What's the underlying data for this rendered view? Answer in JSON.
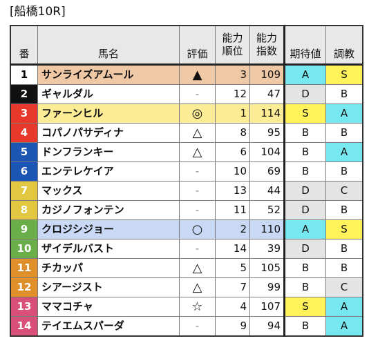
{
  "title": "[船橋10R]",
  "headers": {
    "num": "番",
    "name": "馬名",
    "eval": "評価",
    "rank_l1": "能力",
    "rank_l2": "順位",
    "idx_l1": "能力",
    "idx_l2": "指数",
    "expect": "期待値",
    "training": "調教"
  },
  "colors": {
    "highlight_orange": "#efc9a6",
    "highlight_yellow": "#fdec96",
    "highlight_blue": "#c9d8f4",
    "grade_cyan": "#78e8f0",
    "grade_yellow": "#fff25a",
    "grade_gray": "#e4e4e4",
    "header_gray": "#e8e8e8"
  },
  "rows": [
    {
      "num": "1",
      "name": "サンライズアムール",
      "eval": "▲",
      "rank": "3",
      "index": "109",
      "expect": "A",
      "training": "S",
      "num_bg": "#ffffff",
      "num_color": "#000000",
      "row_bg": "#efc9a6",
      "expect_bg": "#78e8f0",
      "training_bg": "#fff25a"
    },
    {
      "num": "2",
      "name": "ギャルダル",
      "eval": "-",
      "rank": "12",
      "index": "47",
      "expect": "D",
      "training": "B",
      "num_bg": "#111111",
      "num_color": "#ffffff",
      "row_bg": "#ffffff",
      "expect_bg": "#e4e4e4",
      "training_bg": "#ffffff"
    },
    {
      "num": "3",
      "name": "ファーンヒル",
      "eval": "◎",
      "rank": "1",
      "index": "114",
      "expect": "S",
      "training": "A",
      "num_bg": "#e8372b",
      "num_color": "#ffffff",
      "row_bg": "#fdec96",
      "expect_bg": "#fff25a",
      "training_bg": "#78e8f0"
    },
    {
      "num": "4",
      "name": "コパノパサディナ",
      "eval": "△",
      "rank": "8",
      "index": "95",
      "expect": "B",
      "training": "B",
      "num_bg": "#e8372b",
      "num_color": "#ffffff",
      "row_bg": "#ffffff",
      "expect_bg": "#ffffff",
      "training_bg": "#ffffff"
    },
    {
      "num": "5",
      "name": "ドンフランキー",
      "eval": "△",
      "rank": "6",
      "index": "104",
      "expect": "B",
      "training": "A",
      "num_bg": "#1c56b5",
      "num_color": "#ffffff",
      "row_bg": "#ffffff",
      "expect_bg": "#ffffff",
      "training_bg": "#78e8f0"
    },
    {
      "num": "6",
      "name": "エンテレケイア",
      "eval": "-",
      "rank": "10",
      "index": "69",
      "expect": "B",
      "training": "B",
      "num_bg": "#1c56b5",
      "num_color": "#ffffff",
      "row_bg": "#ffffff",
      "expect_bg": "#ffffff",
      "training_bg": "#ffffff"
    },
    {
      "num": "7",
      "name": "マックス",
      "eval": "-",
      "rank": "13",
      "index": "44",
      "expect": "D",
      "training": "C",
      "num_bg": "#e2c840",
      "num_color": "#ffffff",
      "row_bg": "#ffffff",
      "expect_bg": "#e4e4e4",
      "training_bg": "#e4e4e4"
    },
    {
      "num": "8",
      "name": "カジノフォンテン",
      "eval": "-",
      "rank": "11",
      "index": "52",
      "expect": "D",
      "training": "B",
      "num_bg": "#e2c840",
      "num_color": "#ffffff",
      "row_bg": "#ffffff",
      "expect_bg": "#e4e4e4",
      "training_bg": "#ffffff"
    },
    {
      "num": "9",
      "name": "クロジシジョー",
      "eval": "○",
      "rank": "2",
      "index": "110",
      "expect": "A",
      "training": "S",
      "num_bg": "#6aae4a",
      "num_color": "#ffffff",
      "row_bg": "#c9d8f4",
      "expect_bg": "#78e8f0",
      "training_bg": "#fff25a"
    },
    {
      "num": "10",
      "name": "ザイデルバスト",
      "eval": "-",
      "rank": "14",
      "index": "39",
      "expect": "D",
      "training": "B",
      "num_bg": "#6aae4a",
      "num_color": "#ffffff",
      "row_bg": "#ffffff",
      "expect_bg": "#e4e4e4",
      "training_bg": "#ffffff"
    },
    {
      "num": "11",
      "name": "チカッパ",
      "eval": "△",
      "rank": "5",
      "index": "105",
      "expect": "B",
      "training": "B",
      "num_bg": "#e0902a",
      "num_color": "#ffffff",
      "row_bg": "#ffffff",
      "expect_bg": "#ffffff",
      "training_bg": "#ffffff"
    },
    {
      "num": "12",
      "name": "シアージスト",
      "eval": "△",
      "rank": "7",
      "index": "99",
      "expect": "B",
      "training": "C",
      "num_bg": "#e0902a",
      "num_color": "#ffffff",
      "row_bg": "#ffffff",
      "expect_bg": "#ffffff",
      "training_bg": "#e4e4e4"
    },
    {
      "num": "13",
      "name": "ママコチャ",
      "eval": "☆",
      "rank": "4",
      "index": "107",
      "expect": "S",
      "training": "A",
      "num_bg": "#d8507a",
      "num_color": "#ffffff",
      "row_bg": "#ffffff",
      "expect_bg": "#fff25a",
      "training_bg": "#78e8f0"
    },
    {
      "num": "14",
      "name": "テイエムスパーダ",
      "eval": "-",
      "rank": "9",
      "index": "94",
      "expect": "B",
      "training": "A",
      "num_bg": "#d8507a",
      "num_color": "#ffffff",
      "row_bg": "#ffffff",
      "expect_bg": "#ffffff",
      "training_bg": "#78e8f0"
    }
  ]
}
